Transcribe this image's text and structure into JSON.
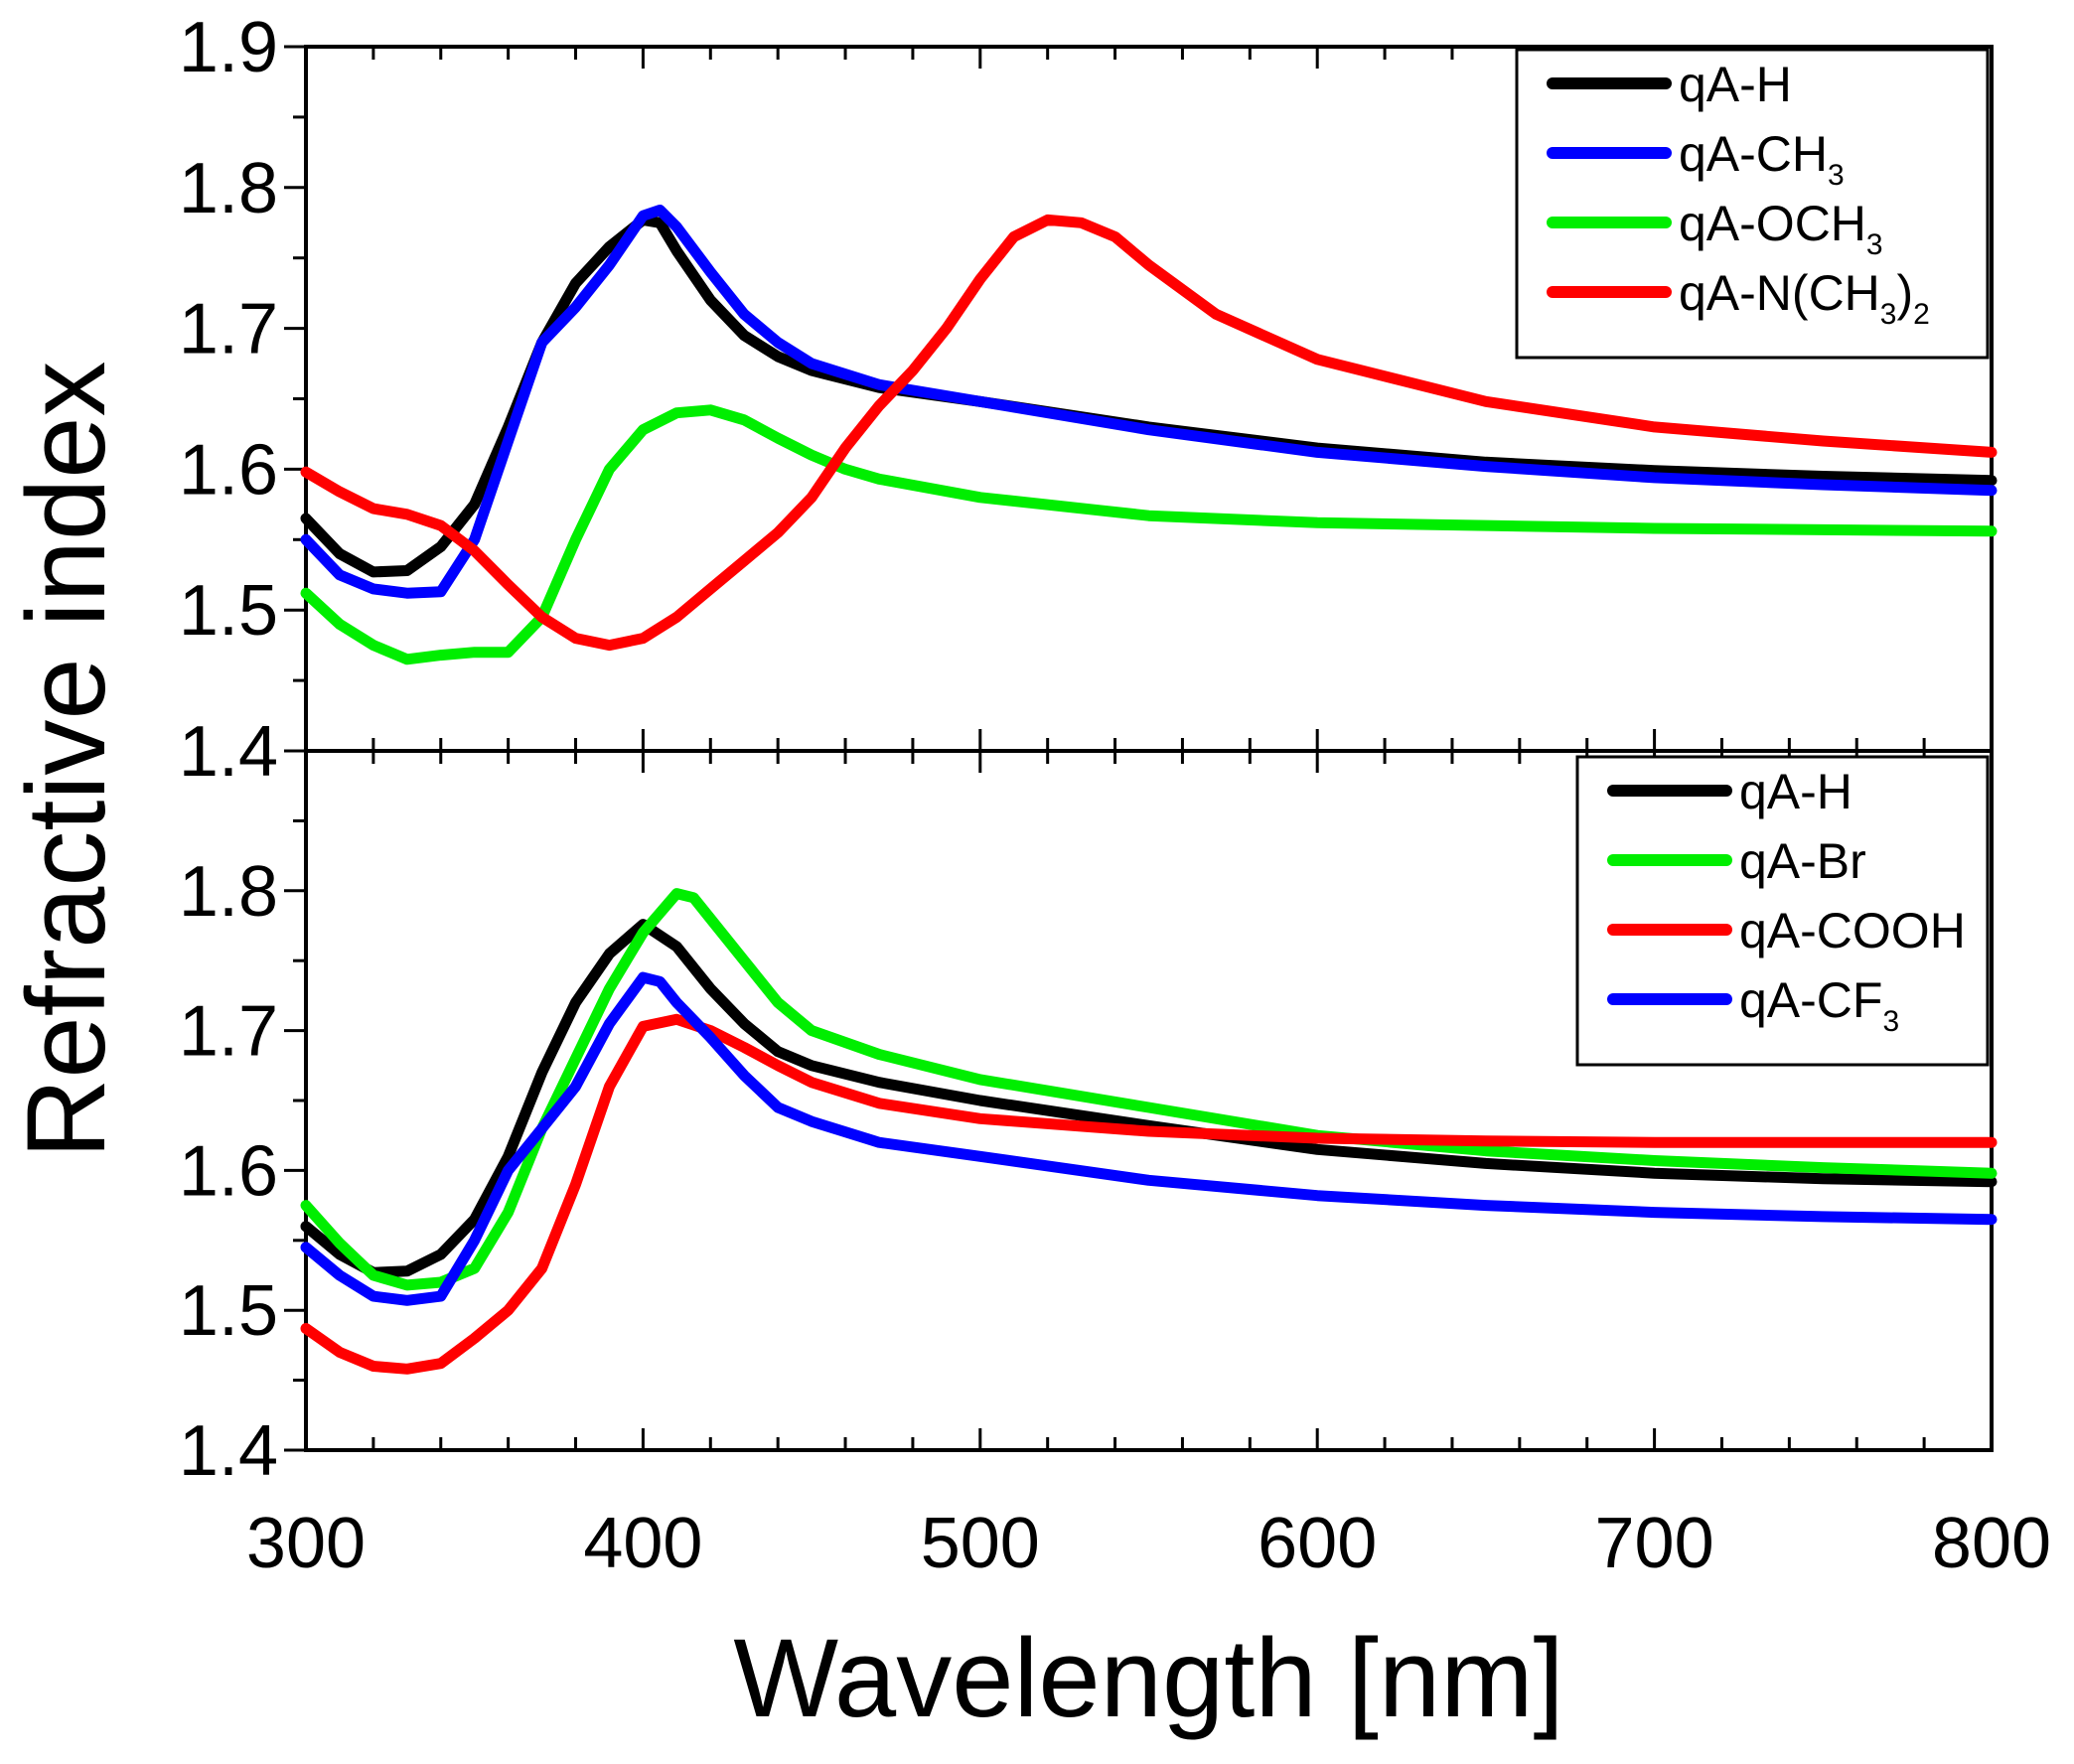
{
  "chart_data": {
    "type": "line",
    "xlabel": "Wavelength [nm]",
    "ylabel": "Refractive index",
    "xlim": [
      300,
      800
    ],
    "xticks": [
      "300",
      "400",
      "500",
      "600",
      "700",
      "800"
    ],
    "panels": [
      {
        "id": "top",
        "ylim": [
          1.4,
          1.9
        ],
        "yticks": [
          "1.4",
          "1.5",
          "1.6",
          "1.7",
          "1.8",
          "1.9"
        ],
        "legend_position": "top-right",
        "series": [
          {
            "name": "qA-H",
            "label_main": "qA-H",
            "color": "#000000",
            "points": [
              [
                300,
                1.565
              ],
              [
                310,
                1.54
              ],
              [
                320,
                1.527
              ],
              [
                330,
                1.528
              ],
              [
                340,
                1.545
              ],
              [
                350,
                1.575
              ],
              [
                360,
                1.63
              ],
              [
                370,
                1.69
              ],
              [
                380,
                1.732
              ],
              [
                390,
                1.758
              ],
              [
                400,
                1.777
              ],
              [
                405,
                1.775
              ],
              [
                410,
                1.755
              ],
              [
                420,
                1.72
              ],
              [
                430,
                1.695
              ],
              [
                440,
                1.68
              ],
              [
                450,
                1.67
              ],
              [
                470,
                1.658
              ],
              [
                500,
                1.648
              ],
              [
                550,
                1.63
              ],
              [
                600,
                1.615
              ],
              [
                650,
                1.605
              ],
              [
                700,
                1.599
              ],
              [
                750,
                1.595
              ],
              [
                800,
                1.592
              ]
            ]
          },
          {
            "name": "qA-CH3",
            "label_main": "qA-CH",
            "label_sub": "3",
            "color": "#0000ff",
            "points": [
              [
                300,
                1.55
              ],
              [
                310,
                1.525
              ],
              [
                320,
                1.515
              ],
              [
                330,
                1.512
              ],
              [
                340,
                1.513
              ],
              [
                350,
                1.55
              ],
              [
                360,
                1.62
              ],
              [
                370,
                1.69
              ],
              [
                380,
                1.715
              ],
              [
                390,
                1.745
              ],
              [
                400,
                1.78
              ],
              [
                405,
                1.784
              ],
              [
                410,
                1.772
              ],
              [
                420,
                1.74
              ],
              [
                430,
                1.71
              ],
              [
                440,
                1.69
              ],
              [
                450,
                1.675
              ],
              [
                470,
                1.66
              ],
              [
                500,
                1.648
              ],
              [
                550,
                1.628
              ],
              [
                600,
                1.612
              ],
              [
                650,
                1.602
              ],
              [
                700,
                1.594
              ],
              [
                750,
                1.589
              ],
              [
                800,
                1.585
              ]
            ]
          },
          {
            "name": "qA-OCH3",
            "label_main": "qA-OCH",
            "label_sub": "3",
            "color": "#00ee00",
            "points": [
              [
                300,
                1.512
              ],
              [
                310,
                1.49
              ],
              [
                320,
                1.475
              ],
              [
                330,
                1.465
              ],
              [
                340,
                1.468
              ],
              [
                350,
                1.47
              ],
              [
                360,
                1.47
              ],
              [
                370,
                1.495
              ],
              [
                380,
                1.55
              ],
              [
                390,
                1.6
              ],
              [
                400,
                1.628
              ],
              [
                410,
                1.64
              ],
              [
                420,
                1.642
              ],
              [
                430,
                1.635
              ],
              [
                440,
                1.622
              ],
              [
                450,
                1.61
              ],
              [
                460,
                1.6
              ],
              [
                470,
                1.593
              ],
              [
                500,
                1.58
              ],
              [
                550,
                1.567
              ],
              [
                600,
                1.562
              ],
              [
                650,
                1.56
              ],
              [
                700,
                1.558
              ],
              [
                750,
                1.557
              ],
              [
                800,
                1.556
              ]
            ]
          },
          {
            "name": "qA-N(CH3)2",
            "label_main": "qA-N(CH",
            "label_sub": "3",
            "label_tail": ")",
            "label_sub2": "2",
            "color": "#ff0000",
            "points": [
              [
                300,
                1.598
              ],
              [
                310,
                1.584
              ],
              [
                320,
                1.572
              ],
              [
                330,
                1.568
              ],
              [
                340,
                1.56
              ],
              [
                350,
                1.542
              ],
              [
                360,
                1.518
              ],
              [
                370,
                1.495
              ],
              [
                380,
                1.48
              ],
              [
                390,
                1.475
              ],
              [
                400,
                1.48
              ],
              [
                410,
                1.495
              ],
              [
                420,
                1.515
              ],
              [
                430,
                1.535
              ],
              [
                440,
                1.555
              ],
              [
                450,
                1.58
              ],
              [
                460,
                1.615
              ],
              [
                470,
                1.645
              ],
              [
                480,
                1.67
              ],
              [
                490,
                1.7
              ],
              [
                500,
                1.735
              ],
              [
                510,
                1.765
              ],
              [
                520,
                1.777
              ],
              [
                530,
                1.775
              ],
              [
                540,
                1.765
              ],
              [
                550,
                1.745
              ],
              [
                570,
                1.71
              ],
              [
                600,
                1.678
              ],
              [
                650,
                1.648
              ],
              [
                700,
                1.63
              ],
              [
                750,
                1.62
              ],
              [
                800,
                1.612
              ]
            ]
          }
        ]
      },
      {
        "id": "bottom",
        "ylim": [
          1.4,
          1.9
        ],
        "yticks": [
          "1.4",
          "1.5",
          "1.6",
          "1.7",
          "1.8"
        ],
        "legend_position": "top-right",
        "series": [
          {
            "name": "qA-H",
            "label_main": "qA-H",
            "color": "#000000",
            "points": [
              [
                300,
                1.56
              ],
              [
                310,
                1.54
              ],
              [
                320,
                1.527
              ],
              [
                330,
                1.528
              ],
              [
                340,
                1.54
              ],
              [
                350,
                1.565
              ],
              [
                360,
                1.61
              ],
              [
                370,
                1.67
              ],
              [
                380,
                1.72
              ],
              [
                390,
                1.755
              ],
              [
                400,
                1.776
              ],
              [
                410,
                1.76
              ],
              [
                420,
                1.73
              ],
              [
                430,
                1.705
              ],
              [
                440,
                1.685
              ],
              [
                450,
                1.675
              ],
              [
                470,
                1.663
              ],
              [
                500,
                1.65
              ],
              [
                550,
                1.632
              ],
              [
                600,
                1.615
              ],
              [
                650,
                1.605
              ],
              [
                700,
                1.598
              ],
              [
                750,
                1.594
              ],
              [
                800,
                1.592
              ]
            ]
          },
          {
            "name": "qA-Br",
            "label_main": "qA-Br",
            "color": "#00ee00",
            "points": [
              [
                300,
                1.575
              ],
              [
                310,
                1.548
              ],
              [
                320,
                1.525
              ],
              [
                330,
                1.518
              ],
              [
                340,
                1.52
              ],
              [
                350,
                1.53
              ],
              [
                360,
                1.57
              ],
              [
                370,
                1.63
              ],
              [
                380,
                1.68
              ],
              [
                390,
                1.73
              ],
              [
                400,
                1.77
              ],
              [
                410,
                1.798
              ],
              [
                415,
                1.795
              ],
              [
                420,
                1.78
              ],
              [
                430,
                1.75
              ],
              [
                440,
                1.72
              ],
              [
                450,
                1.7
              ],
              [
                470,
                1.683
              ],
              [
                500,
                1.665
              ],
              [
                550,
                1.645
              ],
              [
                600,
                1.625
              ],
              [
                650,
                1.614
              ],
              [
                700,
                1.607
              ],
              [
                750,
                1.602
              ],
              [
                800,
                1.598
              ]
            ]
          },
          {
            "name": "qA-COOH",
            "label_main": "qA-COOH",
            "color": "#ff0000",
            "points": [
              [
                300,
                1.487
              ],
              [
                310,
                1.47
              ],
              [
                320,
                1.46
              ],
              [
                330,
                1.458
              ],
              [
                340,
                1.462
              ],
              [
                350,
                1.48
              ],
              [
                360,
                1.5
              ],
              [
                370,
                1.53
              ],
              [
                380,
                1.59
              ],
              [
                390,
                1.66
              ],
              [
                400,
                1.703
              ],
              [
                410,
                1.708
              ],
              [
                420,
                1.7
              ],
              [
                430,
                1.688
              ],
              [
                440,
                1.675
              ],
              [
                450,
                1.663
              ],
              [
                470,
                1.648
              ],
              [
                500,
                1.637
              ],
              [
                550,
                1.628
              ],
              [
                600,
                1.623
              ],
              [
                650,
                1.621
              ],
              [
                700,
                1.62
              ],
              [
                750,
                1.62
              ],
              [
                800,
                1.62
              ]
            ]
          },
          {
            "name": "qA-CF3",
            "label_main": "qA-CF",
            "label_sub": "3",
            "color": "#0000ff",
            "points": [
              [
                300,
                1.545
              ],
              [
                310,
                1.525
              ],
              [
                320,
                1.51
              ],
              [
                330,
                1.507
              ],
              [
                340,
                1.51
              ],
              [
                350,
                1.55
              ],
              [
                360,
                1.6
              ],
              [
                370,
                1.63
              ],
              [
                380,
                1.66
              ],
              [
                390,
                1.705
              ],
              [
                400,
                1.738
              ],
              [
                405,
                1.735
              ],
              [
                410,
                1.72
              ],
              [
                420,
                1.695
              ],
              [
                430,
                1.668
              ],
              [
                440,
                1.645
              ],
              [
                450,
                1.635
              ],
              [
                470,
                1.62
              ],
              [
                500,
                1.61
              ],
              [
                550,
                1.593
              ],
              [
                600,
                1.582
              ],
              [
                650,
                1.575
              ],
              [
                700,
                1.57
              ],
              [
                750,
                1.567
              ],
              [
                800,
                1.565
              ]
            ]
          }
        ]
      }
    ]
  }
}
